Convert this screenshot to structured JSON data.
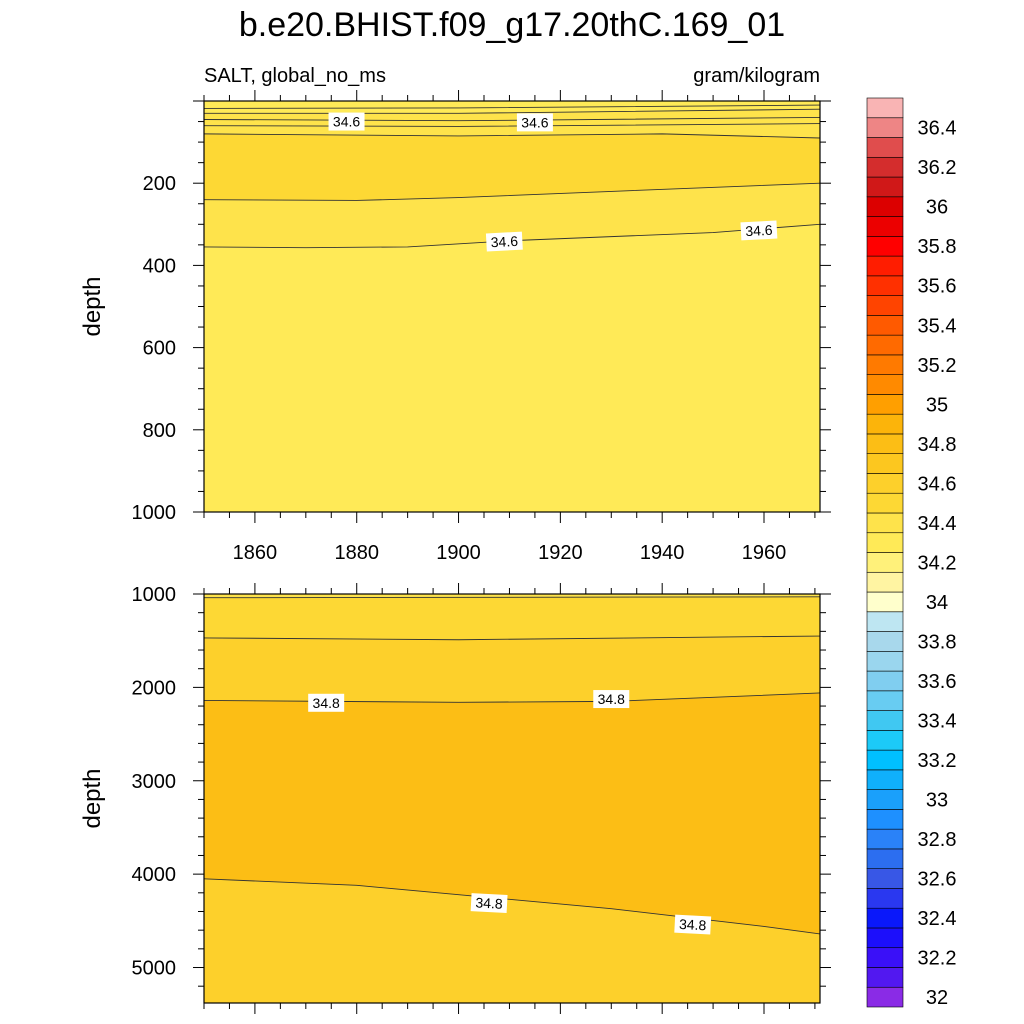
{
  "title": "b.e20.BHIST.f09_g17.20thC.169_01",
  "left_subtitle": "SALT, global_no_ms",
  "right_subtitle": "gram/kilogram",
  "chart_data": [
    {
      "type": "heatmap",
      "subtype": "filled-contour",
      "variable": "SALT",
      "xlim": [
        1850,
        1971
      ],
      "ylim": [
        1000,
        0
      ],
      "y_reversed": true,
      "xticks": [
        1860,
        1880,
        1900,
        1920,
        1940,
        1960
      ],
      "yticks": [
        200,
        400,
        600,
        800,
        1000
      ],
      "xlabel": "",
      "ylabel": "depth",
      "bands": [
        {
          "color": "#ffea57",
          "top": [
            [
              1850,
              0
            ],
            [
              1971,
              0
            ]
          ],
          "bottom": [
            [
              1850,
              30
            ],
            [
              1900,
              30
            ],
            [
              1971,
              20
            ]
          ]
        },
        {
          "color": "#fee34b",
          "top": [
            [
              1850,
              30
            ],
            [
              1900,
              30
            ],
            [
              1971,
              20
            ]
          ],
          "bottom": [
            [
              1850,
              80
            ],
            [
              1900,
              85
            ],
            [
              1940,
              80
            ],
            [
              1971,
              90
            ]
          ]
        },
        {
          "color": "#fdd834",
          "top": [
            [
              1850,
              80
            ],
            [
              1900,
              85
            ],
            [
              1940,
              80
            ],
            [
              1971,
              90
            ]
          ],
          "bottom": [
            [
              1850,
              240
            ],
            [
              1880,
              242
            ],
            [
              1900,
              235
            ],
            [
              1930,
              220
            ],
            [
              1971,
              200
            ]
          ]
        },
        {
          "color": "#fee34b",
          "top": [
            [
              1850,
              240
            ],
            [
              1880,
              242
            ],
            [
              1900,
              235
            ],
            [
              1930,
              220
            ],
            [
              1971,
              200
            ]
          ],
          "bottom": [
            [
              1850,
              355
            ],
            [
              1870,
              357
            ],
            [
              1890,
              355
            ],
            [
              1910,
              340
            ],
            [
              1930,
              330
            ],
            [
              1950,
              320
            ],
            [
              1971,
              300
            ]
          ]
        },
        {
          "color": "#ffea57",
          "top": [
            [
              1850,
              355
            ],
            [
              1870,
              357
            ],
            [
              1890,
              355
            ],
            [
              1910,
              340
            ],
            [
              1930,
              330
            ],
            [
              1950,
              320
            ],
            [
              1971,
              300
            ]
          ],
          "bottom": [
            [
              1850,
              1000
            ],
            [
              1971,
              1000
            ]
          ]
        }
      ],
      "contours": [
        {
          "points": [
            [
              1850,
              18
            ],
            [
              1900,
              17
            ],
            [
              1971,
              10
            ]
          ]
        },
        {
          "points": [
            [
              1850,
              30
            ],
            [
              1900,
              30
            ],
            [
              1971,
              20
            ]
          ]
        },
        {
          "points": [
            [
              1850,
              45
            ],
            [
              1900,
              48
            ],
            [
              1971,
              40
            ]
          ]
        },
        {
          "points": [
            [
              1850,
              60
            ],
            [
              1900,
              62
            ],
            [
              1971,
              55
            ]
          ]
        },
        {
          "points": [
            [
              1850,
              80
            ],
            [
              1900,
              85
            ],
            [
              1940,
              80
            ],
            [
              1971,
              90
            ]
          ]
        },
        {
          "points": [
            [
              1850,
              240
            ],
            [
              1880,
              242
            ],
            [
              1900,
              235
            ],
            [
              1930,
              220
            ],
            [
              1971,
              200
            ]
          ]
        },
        {
          "points": [
            [
              1850,
              355
            ],
            [
              1870,
              357
            ],
            [
              1890,
              355
            ],
            [
              1910,
              340
            ],
            [
              1930,
              330
            ],
            [
              1950,
              320
            ],
            [
              1971,
              300
            ]
          ]
        }
      ],
      "contour_labels": [
        {
          "text": "34.6",
          "x": 1878,
          "y": 50,
          "angle": 0
        },
        {
          "text": "34.6",
          "x": 1915,
          "y": 52,
          "angle": 0
        },
        {
          "text": "34.6",
          "x": 1909,
          "y": 342,
          "angle": -3
        },
        {
          "text": "34.6",
          "x": 1959,
          "y": 315,
          "angle": -3
        }
      ]
    },
    {
      "type": "heatmap",
      "subtype": "filled-contour",
      "variable": "SALT",
      "xlim": [
        1850,
        1971
      ],
      "ylim": [
        5380,
        1000
      ],
      "y_reversed": true,
      "xticks": [
        1860,
        1880,
        1900,
        1920,
        1940,
        1960
      ],
      "yticks": [
        1000,
        2000,
        3000,
        4000,
        5000
      ],
      "xlabel": "",
      "ylabel": "depth",
      "bands": [
        {
          "color": "#fee34b",
          "top": [
            [
              1850,
              1000
            ],
            [
              1971,
              1000
            ]
          ],
          "bottom": [
            [
              1850,
              1040
            ],
            [
              1971,
              1030
            ]
          ]
        },
        {
          "color": "#fdd834",
          "top": [
            [
              1850,
              1040
            ],
            [
              1971,
              1030
            ]
          ],
          "bottom": [
            [
              1850,
              1470
            ],
            [
              1900,
              1490
            ],
            [
              1971,
              1450
            ]
          ]
        },
        {
          "color": "#fdd02b",
          "top": [
            [
              1850,
              1470
            ],
            [
              1900,
              1490
            ],
            [
              1971,
              1450
            ]
          ],
          "bottom": [
            [
              1850,
              2140
            ],
            [
              1900,
              2160
            ],
            [
              1930,
              2150
            ],
            [
              1971,
              2060
            ]
          ]
        },
        {
          "color": "#fcbe15",
          "top": [
            [
              1850,
              2140
            ],
            [
              1900,
              2160
            ],
            [
              1930,
              2150
            ],
            [
              1971,
              2060
            ]
          ],
          "bottom": [
            [
              1850,
              4050
            ],
            [
              1880,
              4120
            ],
            [
              1900,
              4220
            ],
            [
              1930,
              4370
            ],
            [
              1960,
              4560
            ],
            [
              1971,
              4640
            ]
          ]
        },
        {
          "color": "#fdd02b",
          "top": [
            [
              1850,
              4050
            ],
            [
              1880,
              4120
            ],
            [
              1900,
              4220
            ],
            [
              1930,
              4370
            ],
            [
              1960,
              4560
            ],
            [
              1971,
              4640
            ]
          ],
          "bottom": [
            [
              1850,
              5380
            ],
            [
              1971,
              5380
            ]
          ]
        }
      ],
      "contours": [
        {
          "points": [
            [
              1850,
              1040
            ],
            [
              1971,
              1030
            ]
          ]
        },
        {
          "points": [
            [
              1850,
              1470
            ],
            [
              1900,
              1490
            ],
            [
              1971,
              1450
            ]
          ]
        },
        {
          "points": [
            [
              1850,
              2140
            ],
            [
              1900,
              2160
            ],
            [
              1930,
              2150
            ],
            [
              1971,
              2060
            ]
          ]
        },
        {
          "points": [
            [
              1850,
              4050
            ],
            [
              1880,
              4120
            ],
            [
              1900,
              4220
            ],
            [
              1930,
              4370
            ],
            [
              1960,
              4560
            ],
            [
              1971,
              4640
            ]
          ]
        }
      ],
      "contour_labels": [
        {
          "text": "34.8",
          "x": 1874,
          "y": 2165,
          "angle": 0
        },
        {
          "text": "34.8",
          "x": 1930,
          "y": 2125,
          "angle": 0
        },
        {
          "text": "34.8",
          "x": 1906,
          "y": 4310,
          "angle": 3
        },
        {
          "text": "34.8",
          "x": 1946,
          "y": 4540,
          "angle": 3
        }
      ]
    }
  ],
  "colorbar": {
    "levels": [
      32,
      32.1,
      32.2,
      32.3,
      32.4,
      32.5,
      32.6,
      32.7,
      32.8,
      32.9,
      33,
      33.1,
      33.2,
      33.3,
      33.4,
      33.5,
      33.6,
      33.7,
      33.8,
      33.9,
      34,
      34.1,
      34.2,
      34.3,
      34.4,
      34.5,
      34.6,
      34.7,
      34.8,
      34.9,
      35,
      35.1,
      35.2,
      35.3,
      35.4,
      35.5,
      35.6,
      35.7,
      35.8,
      35.9,
      36,
      36.1,
      36.2,
      36.3,
      36.4,
      36.5
    ],
    "colors": [
      "#8a2be6",
      "#5218f0",
      "#3a10f8",
      "#1c0ffb",
      "#0a18fa",
      "#2a38f0",
      "#3857e6",
      "#2c6ef0",
      "#2a82f8",
      "#1e90ff",
      "#1aa0fb",
      "#10b0fb",
      "#00c0ff",
      "#1ccaf8",
      "#40c8f2",
      "#68ccf2",
      "#80cef0",
      "#9ad6ee",
      "#a8d8ec",
      "#bee6f2",
      "#ffffcc",
      "#fff4a2",
      "#fff17a",
      "#ffea57",
      "#fee34b",
      "#fdd834",
      "#fdd02b",
      "#fcc71f",
      "#fcbe15",
      "#fcb40a",
      "#ff9f00",
      "#ff8a00",
      "#ff7a00",
      "#ff6a00",
      "#ff5a00",
      "#ff4400",
      "#ff3000",
      "#ff1d00",
      "#ff0000",
      "#ec0000",
      "#dc0000",
      "#d01818",
      "#d42d2d",
      "#e04d4d",
      "#ee8585",
      "#f9b4b4"
    ],
    "labels": [
      "32",
      "32.2",
      "32.4",
      "32.6",
      "32.8",
      "33",
      "33.2",
      "33.4",
      "33.6",
      "33.8",
      "34",
      "34.2",
      "34.4",
      "34.6",
      "34.8",
      "35",
      "35.2",
      "35.4",
      "35.6",
      "35.8",
      "36",
      "36.2",
      "36.4"
    ]
  }
}
